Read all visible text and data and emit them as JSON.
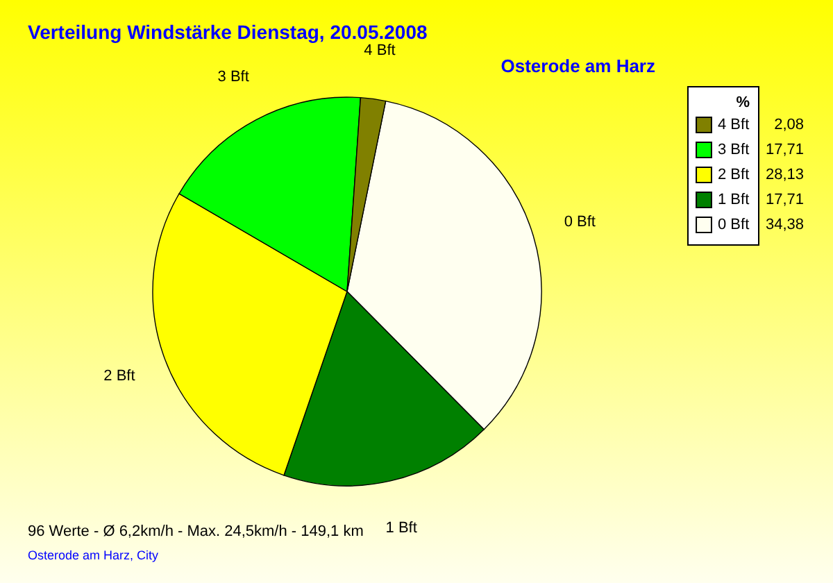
{
  "chart_data": {
    "type": "pie",
    "title": "Verteilung Windstärke  Dienstag, 20.05.2008",
    "subtitle": "Osterode am Harz",
    "legend_title": "%",
    "legend": "top right",
    "value_labels": [
      "34,38",
      "17,71",
      "28,13",
      "17,71",
      "2,08"
    ],
    "categories": [
      "0 Bft",
      "1 Bft",
      "2 Bft",
      "3 Bft",
      "4 Bft"
    ],
    "values": [
      34.38,
      17.71,
      28.13,
      17.71,
      2.08
    ],
    "colors": [
      "#fffff0",
      "#008000",
      "#ffff00",
      "#00ff00",
      "#808000"
    ],
    "annotations": [
      "96 Werte   -   Ø 6,2km/h  -  Max. 24,5km/h   -   149,1 km",
      "Osterode am Harz, City"
    ]
  }
}
